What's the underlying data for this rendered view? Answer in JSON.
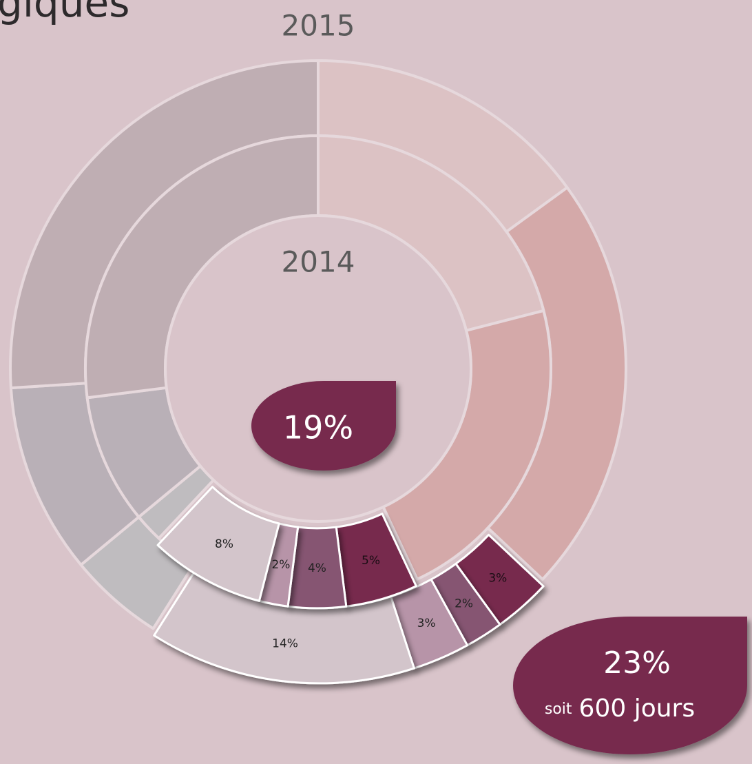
{
  "chart_data": {
    "type": "nested-donut",
    "title": "giques",
    "series": [
      {
        "name": "2015",
        "values": [
          15,
          22,
          3,
          2,
          3,
          14,
          5,
          10,
          26
        ],
        "value_labels": [
          null,
          null,
          "3%",
          "2%",
          "3%",
          "14%",
          null,
          null,
          null
        ],
        "colors": [
          "#dcc2c4",
          "#d4a9a9",
          "#772b4e",
          "#865572",
          "#b794a8",
          "#d3c5cb",
          "#bfbcbf",
          "#b9b0b7",
          "#bfaeb3"
        ],
        "exploded": [
          false,
          false,
          true,
          true,
          true,
          true,
          false,
          false,
          false
        ]
      },
      {
        "name": "2014",
        "values": [
          21,
          22,
          5,
          4,
          2,
          8,
          2,
          9,
          27
        ],
        "value_labels": [
          null,
          null,
          "5%",
          "4%",
          "2%",
          "8%",
          null,
          null,
          null
        ],
        "colors": [
          "#dcc2c4",
          "#d4a9a9",
          "#772b4e",
          "#865572",
          "#b794a8",
          "#d3c5cb",
          "#bfbcbf",
          "#b9b0b7",
          "#bfaeb3"
        ],
        "exploded": [
          false,
          false,
          true,
          true,
          true,
          true,
          false,
          false,
          false
        ]
      }
    ],
    "annotations": [
      {
        "label": "19%",
        "color": "#772b4e"
      },
      {
        "label": "23%",
        "prefix": "soit",
        "note": "600 jours",
        "color": "#772b4e"
      }
    ]
  }
}
